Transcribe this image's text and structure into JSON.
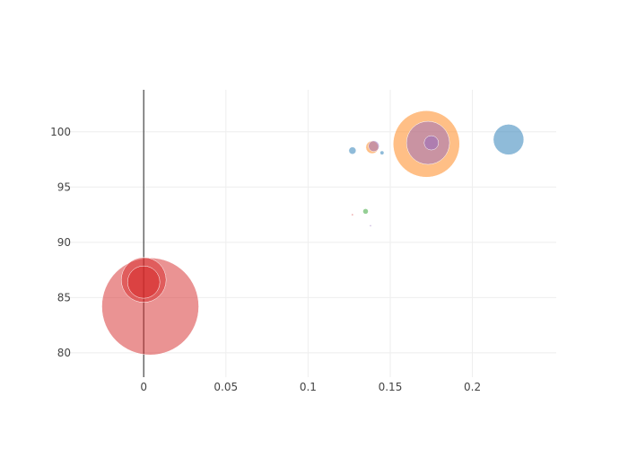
{
  "chart_data": {
    "type": "scatter",
    "title": "",
    "xlabel": "",
    "ylabel": "",
    "xlim": [
      -0.0465,
      0.251
    ],
    "ylim": [
      77.8,
      103.8
    ],
    "x_ticks": [
      0,
      0.05,
      0.1,
      0.15,
      0.2
    ],
    "x_tick_labels": [
      "0",
      "0.05",
      "0.1",
      "0.15",
      "0.2"
    ],
    "y_ticks": [
      80,
      85,
      90,
      95,
      100
    ],
    "y_tick_labels": [
      "80",
      "85",
      "90",
      "95",
      "100"
    ],
    "grid": true,
    "legend": "none",
    "bubble_size_scale": "relative",
    "points": [
      {
        "x": 0.004,
        "y": 84.2,
        "size": 54,
        "color": "#d62728"
      },
      {
        "x": 0.0,
        "y": 86.6,
        "size": 25,
        "color": "#d62728"
      },
      {
        "x": 0.0,
        "y": 86.4,
        "size": 18,
        "color": "#d62728"
      },
      {
        "x": 0.172,
        "y": 98.9,
        "size": 37,
        "color": "#ff7f0e"
      },
      {
        "x": 0.173,
        "y": 99.0,
        "size": 24,
        "color": "#9467bd"
      },
      {
        "x": 0.175,
        "y": 99.0,
        "size": 8,
        "color": "#9467bd"
      },
      {
        "x": 0.222,
        "y": 99.3,
        "size": 17,
        "color": "#1f77b4"
      },
      {
        "x": 0.139,
        "y": 98.6,
        "size": 7,
        "color": "#ff7f0e"
      },
      {
        "x": 0.14,
        "y": 98.7,
        "size": 6,
        "color": "#9467bd"
      },
      {
        "x": 0.127,
        "y": 98.3,
        "size": 4,
        "color": "#1f77b4"
      },
      {
        "x": 0.145,
        "y": 98.1,
        "size": 2.2,
        "color": "#1f77b4"
      },
      {
        "x": 0.135,
        "y": 92.8,
        "size": 3,
        "color": "#2ca02c"
      },
      {
        "x": 0.127,
        "y": 92.5,
        "size": 1,
        "color": "#d62728"
      },
      {
        "x": 0.138,
        "y": 91.5,
        "size": 1,
        "color": "#9467bd"
      }
    ]
  }
}
